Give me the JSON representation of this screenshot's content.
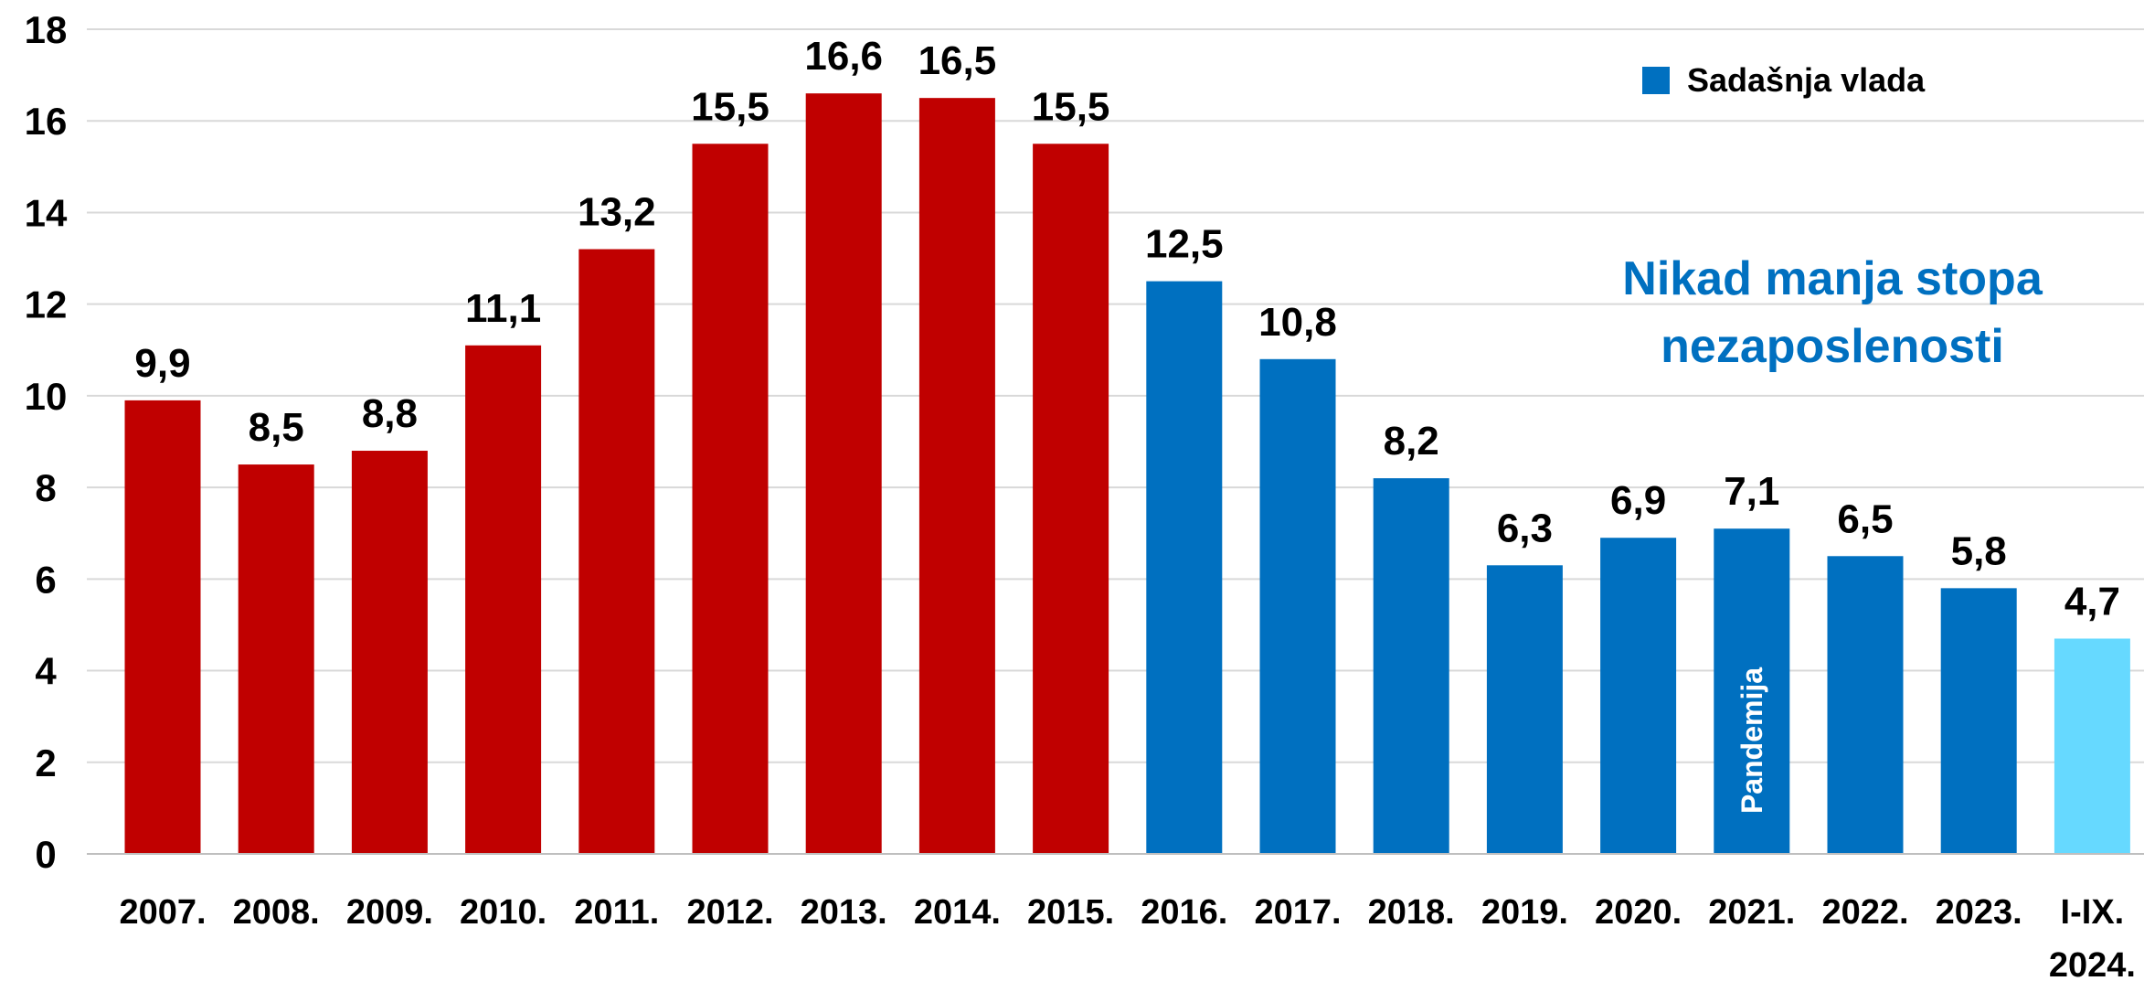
{
  "chart_data": {
    "type": "bar",
    "categories": [
      "2007.",
      "2008.",
      "2009.",
      "2010.",
      "2011.",
      "2012.",
      "2013.",
      "2014.",
      "2015.",
      "2016.",
      "2017.",
      "2018.",
      "2019.",
      "2020.",
      "2021.",
      "2022.",
      "2023.",
      "I-IX. 2024."
    ],
    "values": [
      9.9,
      8.5,
      8.8,
      11.1,
      13.2,
      15.5,
      16.6,
      16.5,
      15.5,
      12.5,
      10.8,
      8.2,
      6.3,
      6.9,
      7.1,
      6.5,
      5.8,
      4.7
    ],
    "value_labels": [
      "9,9",
      "8,5",
      "8,8",
      "11,1",
      "13,2",
      "15,5",
      "16,6",
      "16,5",
      "15,5",
      "12,5",
      "10,8",
      "8,2",
      "6,3",
      "6,9",
      "7,1",
      "6,5",
      "5,8",
      "4,7"
    ],
    "bar_colors": [
      "#C00000",
      "#C00000",
      "#C00000",
      "#C00000",
      "#C00000",
      "#C00000",
      "#C00000",
      "#C00000",
      "#C00000",
      "#0070C0",
      "#0070C0",
      "#0070C0",
      "#0070C0",
      "#0070C0",
      "#0070C0",
      "#0070C0",
      "#0070C0",
      "#66D9FF"
    ],
    "ylim": [
      0,
      18
    ],
    "yticks": [
      0,
      2,
      4,
      6,
      8,
      10,
      12,
      14,
      16,
      18
    ],
    "grid": true,
    "legend": {
      "placement": "top-right",
      "entries": [
        {
          "label": "Sadašnja vlada",
          "color": "#0070C0"
        }
      ]
    },
    "headline": {
      "lines": [
        "Nikad manja stopa",
        "nezaposlenosti"
      ],
      "color": "#0070C0"
    },
    "annotation": {
      "text": "Pandemija",
      "category": "2021."
    },
    "title": "",
    "xlabel": "",
    "ylabel": ""
  }
}
